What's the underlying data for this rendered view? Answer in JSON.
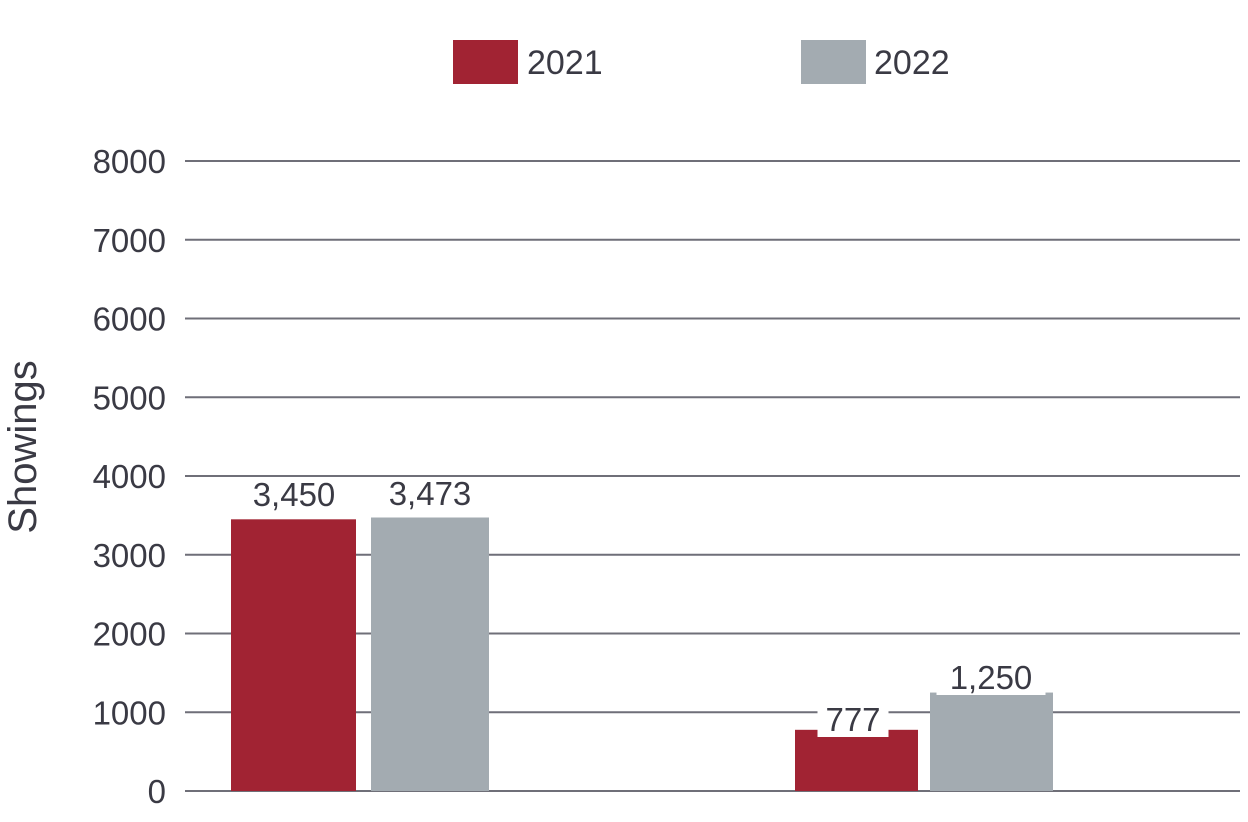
{
  "chart_data": {
    "type": "bar",
    "title": "",
    "xlabel": "",
    "ylabel": "Showings",
    "ylim": [
      0,
      8000
    ],
    "yticks": [
      0,
      1000,
      2000,
      3000,
      4000,
      5000,
      6000,
      7000,
      8000
    ],
    "grid": true,
    "legend_position": "top",
    "categories": [
      "",
      ""
    ],
    "series": [
      {
        "name": "2021",
        "color": "#a12333",
        "values": [
          3450,
          777
        ],
        "labels": [
          "3,450",
          "777"
        ]
      },
      {
        "name": "2022",
        "color": "#a3abb1",
        "values": [
          3473,
          1250
        ],
        "labels": [
          "3,473",
          "1,250"
        ]
      }
    ]
  }
}
